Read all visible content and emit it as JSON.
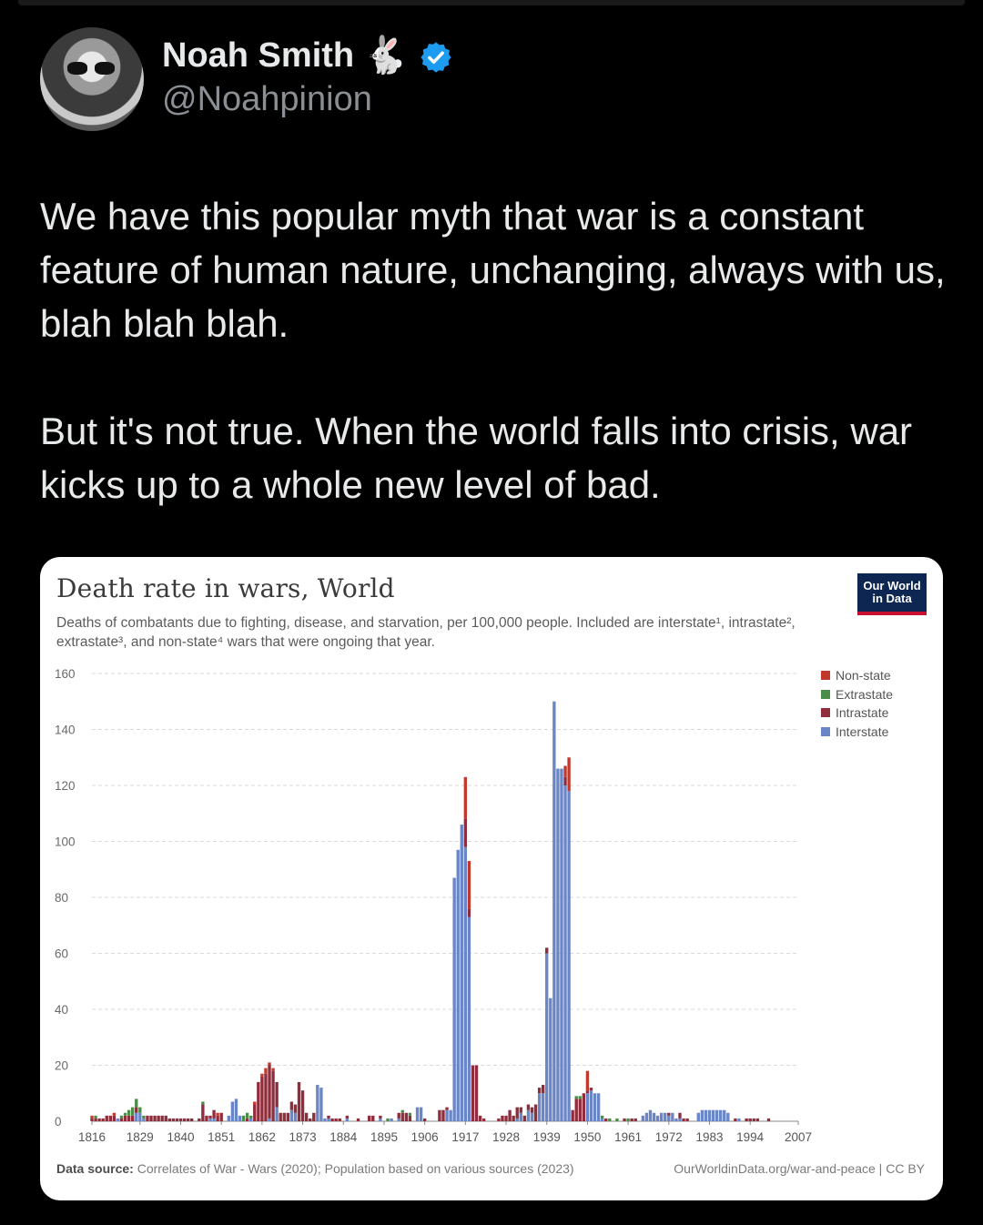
{
  "author": {
    "name": "Noah Smith",
    "emoji": "🐇",
    "handle": "@Noahpinion",
    "verified_color": "#1d9bf0"
  },
  "tweet": {
    "paragraphs": [
      "We have this popular myth that war is a constant feature of human nature, unchanging, always with us, blah blah blah.",
      "But it's not true. When the world falls into crisis, war kicks up to a whole new level of bad."
    ]
  },
  "card": {
    "logo_line1": "Our World",
    "logo_line2": "in Data",
    "footer_source_label": "Data source:",
    "footer_source_text": "Correlates of War - Wars (2020); Population based on various sources (2023)",
    "footer_right": "OurWorldinData.org/war-and-peace | CC BY"
  },
  "chart_data": {
    "type": "bar",
    "stacked": true,
    "title": "Death rate in wars, World",
    "subtitle": "Deaths of combatants due to fighting, disease, and starvation, per 100,000 people. Included are interstate¹, intrastate², extrastate³, and non-state⁴ wars that were ongoing that year.",
    "ylim": [
      0,
      160
    ],
    "yticks": [
      0,
      20,
      40,
      60,
      80,
      100,
      120,
      140,
      160
    ],
    "xticks": [
      "1816",
      "1829",
      "1840",
      "1851",
      "1862",
      "1873",
      "1884",
      "1895",
      "1906",
      "1917",
      "1928",
      "1939",
      "1950",
      "1961",
      "1972",
      "1983",
      "1994",
      "2007"
    ],
    "grid": true,
    "legend_position": "right",
    "colors": {
      "Non-state": "#c0392b",
      "Extrastate": "#4c8c4a",
      "Intrastate": "#8f2d3c",
      "Interstate": "#6b86c6"
    },
    "legend": [
      "Non-state",
      "Extrastate",
      "Intrastate",
      "Interstate"
    ],
    "x_start": 1816,
    "x_end": 2007,
    "series": [
      {
        "name": "Interstate",
        "points": [
          [
            1823,
            1
          ],
          [
            1828,
            3
          ],
          [
            1829,
            3
          ],
          [
            1830,
            1
          ],
          [
            1848,
            1
          ],
          [
            1849,
            1
          ],
          [
            1853,
            2
          ],
          [
            1854,
            7
          ],
          [
            1855,
            8
          ],
          [
            1856,
            2
          ],
          [
            1859,
            1
          ],
          [
            1864,
            1
          ],
          [
            1866,
            5
          ],
          [
            1870,
            4
          ],
          [
            1871,
            3
          ],
          [
            1877,
            13
          ],
          [
            1878,
            12
          ],
          [
            1879,
            1
          ],
          [
            1880,
            1
          ],
          [
            1885,
            1
          ],
          [
            1894,
            1
          ],
          [
            1897,
            1
          ],
          [
            1899,
            1
          ],
          [
            1904,
            5
          ],
          [
            1905,
            5
          ],
          [
            1912,
            4
          ],
          [
            1913,
            4
          ],
          [
            1914,
            87
          ],
          [
            1915,
            97
          ],
          [
            1916,
            106
          ],
          [
            1917,
            98
          ],
          [
            1918,
            73
          ],
          [
            1931,
            1
          ],
          [
            1932,
            3
          ],
          [
            1934,
            4
          ],
          [
            1935,
            3
          ],
          [
            1937,
            10
          ],
          [
            1938,
            10
          ],
          [
            1939,
            60
          ],
          [
            1940,
            44
          ],
          [
            1941,
            150
          ],
          [
            1942,
            126
          ],
          [
            1943,
            126
          ],
          [
            1944,
            120
          ],
          [
            1945,
            118
          ],
          [
            1950,
            10
          ],
          [
            1951,
            11
          ],
          [
            1952,
            10
          ],
          [
            1953,
            10
          ],
          [
            1954,
            1
          ],
          [
            1965,
            2
          ],
          [
            1966,
            3
          ],
          [
            1967,
            4
          ],
          [
            1968,
            3
          ],
          [
            1969,
            2
          ],
          [
            1970,
            3
          ],
          [
            1971,
            3
          ],
          [
            1972,
            2
          ],
          [
            1973,
            3
          ],
          [
            1974,
            1
          ],
          [
            1975,
            1
          ],
          [
            1980,
            3
          ],
          [
            1981,
            4
          ],
          [
            1982,
            4
          ],
          [
            1983,
            4
          ],
          [
            1984,
            4
          ],
          [
            1985,
            4
          ],
          [
            1986,
            4
          ],
          [
            1987,
            4
          ],
          [
            1988,
            3
          ],
          [
            1991,
            1
          ]
        ]
      },
      {
        "name": "Intrastate",
        "points": [
          [
            1816,
            1
          ],
          [
            1817,
            1
          ],
          [
            1818,
            1
          ],
          [
            1819,
            1
          ],
          [
            1820,
            2
          ],
          [
            1821,
            2
          ],
          [
            1822,
            2
          ],
          [
            1824,
            1
          ],
          [
            1825,
            2
          ],
          [
            1826,
            2
          ],
          [
            1827,
            2
          ],
          [
            1828,
            2
          ],
          [
            1831,
            2
          ],
          [
            1832,
            2
          ],
          [
            1833,
            2
          ],
          [
            1834,
            2
          ],
          [
            1835,
            2
          ],
          [
            1836,
            2
          ],
          [
            1837,
            1
          ],
          [
            1838,
            1
          ],
          [
            1839,
            1
          ],
          [
            1840,
            1
          ],
          [
            1841,
            1
          ],
          [
            1842,
            1
          ],
          [
            1843,
            1
          ],
          [
            1845,
            1
          ],
          [
            1846,
            6
          ],
          [
            1847,
            2
          ],
          [
            1848,
            1
          ],
          [
            1849,
            3
          ],
          [
            1850,
            2
          ],
          [
            1851,
            3
          ],
          [
            1858,
            1
          ],
          [
            1860,
            6
          ],
          [
            1861,
            14
          ],
          [
            1862,
            16
          ],
          [
            1863,
            17
          ],
          [
            1864,
            19
          ],
          [
            1865,
            18
          ],
          [
            1866,
            9
          ],
          [
            1867,
            3
          ],
          [
            1868,
            3
          ],
          [
            1869,
            3
          ],
          [
            1870,
            3
          ],
          [
            1871,
            3
          ],
          [
            1872,
            14
          ],
          [
            1873,
            11
          ],
          [
            1874,
            3
          ],
          [
            1875,
            1
          ],
          [
            1876,
            3
          ],
          [
            1880,
            1
          ],
          [
            1881,
            1
          ],
          [
            1882,
            1
          ],
          [
            1883,
            1
          ],
          [
            1885,
            1
          ],
          [
            1888,
            1
          ],
          [
            1891,
            2
          ],
          [
            1892,
            2
          ],
          [
            1894,
            1
          ],
          [
            1899,
            2
          ],
          [
            1900,
            3
          ],
          [
            1901,
            3
          ],
          [
            1902,
            2
          ],
          [
            1906,
            1
          ],
          [
            1910,
            4
          ],
          [
            1911,
            4
          ],
          [
            1912,
            1
          ],
          [
            1917,
            10
          ],
          [
            1918,
            3
          ],
          [
            1919,
            20
          ],
          [
            1920,
            20
          ],
          [
            1921,
            2
          ],
          [
            1922,
            1
          ],
          [
            1926,
            1
          ],
          [
            1927,
            2
          ],
          [
            1928,
            2
          ],
          [
            1929,
            4
          ],
          [
            1930,
            2
          ],
          [
            1931,
            4
          ],
          [
            1932,
            2
          ],
          [
            1933,
            2
          ],
          [
            1934,
            2
          ],
          [
            1935,
            2
          ],
          [
            1936,
            6
          ],
          [
            1937,
            2
          ],
          [
            1938,
            3
          ],
          [
            1939,
            2
          ],
          [
            1944,
            3
          ],
          [
            1946,
            4
          ],
          [
            1947,
            8
          ],
          [
            1948,
            8
          ],
          [
            1949,
            10
          ],
          [
            1950,
            1
          ],
          [
            1951,
            1
          ],
          [
            1955,
            1
          ],
          [
            1960,
            1
          ],
          [
            1962,
            1
          ],
          [
            1963,
            1
          ],
          [
            1972,
            1
          ],
          [
            1975,
            2
          ],
          [
            1976,
            1
          ],
          [
            1977,
            1
          ],
          [
            1990,
            1
          ],
          [
            1993,
            1
          ],
          [
            1994,
            1
          ],
          [
            1995,
            1
          ],
          [
            1996,
            1
          ],
          [
            1999,
            1
          ]
        ]
      },
      {
        "name": "Extrastate",
        "points": [
          [
            1817,
            1
          ],
          [
            1824,
            1
          ],
          [
            1825,
            1
          ],
          [
            1826,
            2
          ],
          [
            1827,
            3
          ],
          [
            1828,
            3
          ],
          [
            1829,
            2
          ],
          [
            1830,
            1
          ],
          [
            1846,
            1
          ],
          [
            1857,
            2
          ],
          [
            1858,
            2
          ],
          [
            1859,
            1
          ],
          [
            1896,
            1
          ],
          [
            1900,
            1
          ],
          [
            1902,
            1
          ],
          [
            1947,
            1
          ],
          [
            1948,
            1
          ],
          [
            1954,
            1
          ],
          [
            1956,
            1
          ],
          [
            1958,
            1
          ],
          [
            1961,
            1
          ]
        ]
      },
      {
        "name": "Non-state",
        "points": [
          [
            1816,
            1
          ],
          [
            1822,
            1
          ],
          [
            1850,
            1
          ],
          [
            1860,
            1
          ],
          [
            1862,
            1
          ],
          [
            1863,
            2
          ],
          [
            1864,
            1
          ],
          [
            1865,
            1
          ],
          [
            1917,
            15
          ],
          [
            1918,
            17
          ],
          [
            1944,
            4
          ],
          [
            1945,
            12
          ],
          [
            1950,
            7
          ]
        ]
      }
    ]
  }
}
